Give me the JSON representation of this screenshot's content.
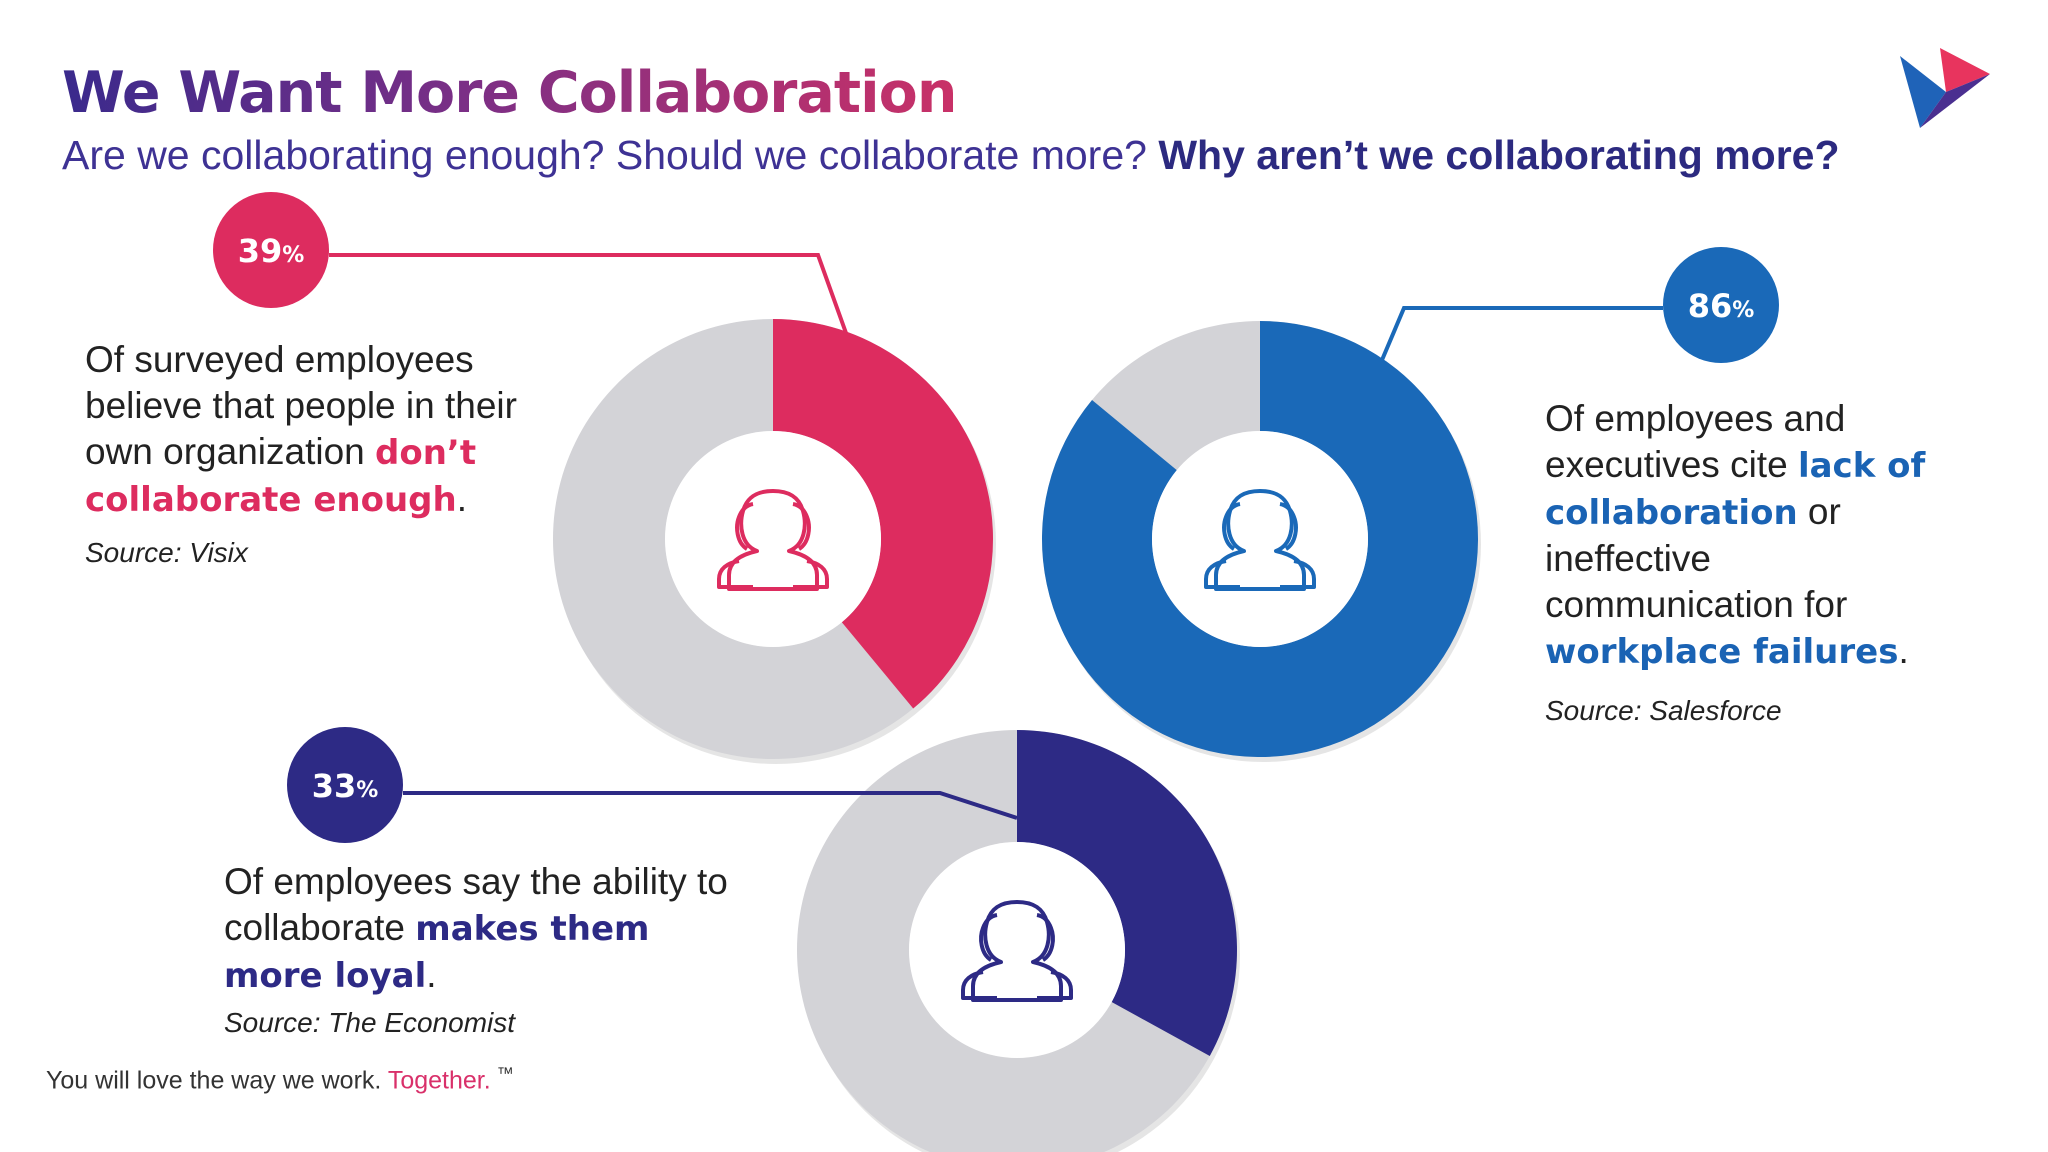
{
  "slide": {
    "title": "We Want More Collaboration",
    "subtitle_part1": "Are we collaborating enough? Should we collaborate more?",
    "subtitle_part2": "Why aren’t we collaborating more?",
    "footer_text": "You will love the way we work.",
    "footer_accent": "Together.",
    "footer_tm": "™"
  },
  "colors": {
    "pink": "#dd2c5f",
    "blue": "#1a69b8",
    "navy": "#2d2a85",
    "ring_gray": "#d3d3d7",
    "logo_pink": "#e8345e",
    "logo_blue": "#1f63b8",
    "logo_purple": "#4a2f90"
  },
  "icons": {
    "logo": "play-triangle-logo",
    "group": "people-group-icon"
  },
  "stats": [
    {
      "value_text": "39",
      "pct": "%",
      "text_before": "Of surveyed employees believe that people in their own organization ",
      "highlight": "don’t collaborate enough",
      "text_after": ".",
      "source": "Source: Visix"
    },
    {
      "value_text": "86",
      "pct": "%",
      "text_before": "Of employees and executives cite ",
      "highlight": "lack of collaboration",
      "text_middle": " or ineffective communication for ",
      "highlight2": "workplace failures",
      "text_after": ".",
      "source": "Source: Salesforce"
    },
    {
      "value_text": "33",
      "pct": "%",
      "text_before": "Of employees say the ability to collaborate ",
      "highlight": "makes them more loyal",
      "text_after": ".",
      "source": "Source: The Economist"
    }
  ],
  "chart_data": [
    {
      "type": "pie",
      "variant": "donut",
      "values": [
        39,
        61
      ],
      "color": "#dd2c5f"
    },
    {
      "type": "pie",
      "variant": "donut",
      "values": [
        86,
        14
      ],
      "color": "#1a69b8"
    },
    {
      "type": "pie",
      "variant": "donut",
      "values": [
        33,
        67
      ],
      "color": "#2d2a85"
    }
  ]
}
